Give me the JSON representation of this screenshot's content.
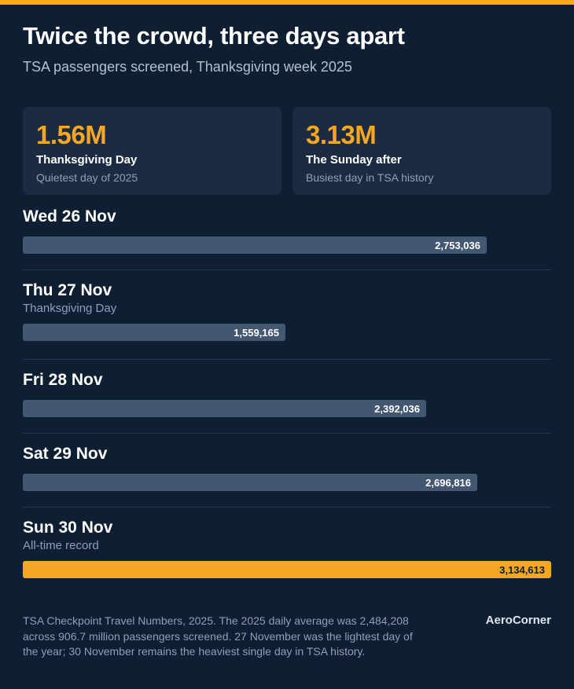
{
  "header": {
    "title": "Twice the crowd, three days apart",
    "subtitle": "TSA passengers screened, Thanksgiving week 2025"
  },
  "cards": [
    {
      "value": "1.56M",
      "label": "Thanksgiving Day",
      "note": "Quietest day of 2025"
    },
    {
      "value": "3.13M",
      "label": "The Sunday after",
      "note": "Busiest day in TSA history"
    }
  ],
  "chart_data": {
    "type": "bar",
    "orientation": "horizontal",
    "categories": [
      "Wed 26 Nov",
      "Thu 27 Nov",
      "Fri 28 Nov",
      "Sat 29 Nov",
      "Sun 30 Nov"
    ],
    "category_notes": [
      "",
      "Thanksgiving Day",
      "",
      "",
      "All-time record"
    ],
    "values": [
      2753036,
      1559165,
      2392036,
      2696816,
      3134613
    ],
    "value_labels": [
      "2,753,036",
      "1,559,165",
      "2,392,036",
      "2,696,816",
      "3,134,613"
    ],
    "highlight_index": 4,
    "xlim": [
      0,
      3134613
    ],
    "colors": {
      "bar": "#445770",
      "highlight": "#f5a623",
      "background": "#0e1e33"
    }
  },
  "footer": {
    "source": "TSA Checkpoint Travel Numbers, 2025. The 2025 daily average was 2,484,208 across 906.7 million passengers screened. 27 November was the lightest day of the year; 30 November remains the heaviest single day in TSA history.",
    "brand": "AeroCorner"
  }
}
